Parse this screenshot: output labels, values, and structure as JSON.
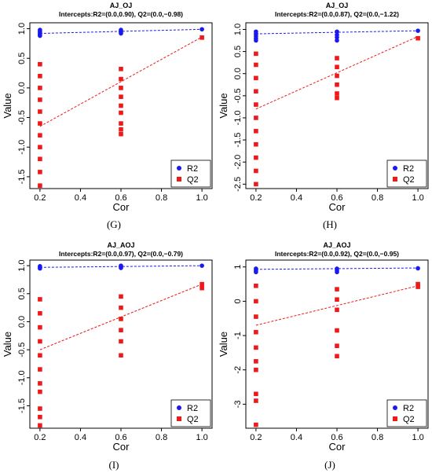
{
  "captions": [
    "(G)",
    "(H)",
    "(I)",
    "(J)"
  ],
  "chart_data": [
    {
      "type": "scatter",
      "title": "AJ_OJ",
      "subtitle": "Intercepts:R2=(0.0,0.90), Q2=(0.0,−0.98)",
      "xlabel": "Cor",
      "ylabel": "Value",
      "xlim": [
        0.15,
        1.05
      ],
      "ylim": [
        -1.7,
        1.1
      ],
      "xticks": [
        "0.2",
        "0.4",
        "0.6",
        "0.8",
        "1.0"
      ],
      "yticks": [
        "1.0",
        "0.5",
        "0.0",
        "-0.5",
        "-1.0",
        "-1.5"
      ],
      "legend_position": "bottom-right",
      "legend": [
        "R2",
        "Q2"
      ],
      "colors": {
        "R2": "#1a1aee",
        "Q2": "#ee1a1a"
      },
      "series": [
        {
          "name": "R2",
          "points": [
            [
              0.2,
              0.88
            ],
            [
              0.2,
              0.9
            ],
            [
              0.2,
              0.92
            ],
            [
              0.2,
              0.94
            ],
            [
              0.2,
              0.96
            ],
            [
              0.2,
              0.98
            ],
            [
              0.6,
              0.92
            ],
            [
              0.6,
              0.94
            ],
            [
              0.6,
              0.96
            ],
            [
              0.6,
              0.98
            ],
            [
              1.0,
              0.99
            ]
          ],
          "fit": [
            [
              0.2,
              0.92
            ],
            [
              1.0,
              0.99
            ]
          ]
        },
        {
          "name": "Q2",
          "points": [
            [
              0.2,
              0.4
            ],
            [
              0.2,
              0.2
            ],
            [
              0.2,
              0.0
            ],
            [
              0.2,
              -0.2
            ],
            [
              0.2,
              -0.4
            ],
            [
              0.2,
              -0.6
            ],
            [
              0.2,
              -0.8
            ],
            [
              0.2,
              -1.0
            ],
            [
              0.2,
              -1.2
            ],
            [
              0.2,
              -1.42
            ],
            [
              0.2,
              -1.65
            ],
            [
              0.6,
              0.32
            ],
            [
              0.6,
              0.15
            ],
            [
              0.6,
              0.0
            ],
            [
              0.6,
              -0.15
            ],
            [
              0.6,
              -0.3
            ],
            [
              0.6,
              -0.42
            ],
            [
              0.6,
              -0.6
            ],
            [
              0.6,
              -0.7
            ],
            [
              0.6,
              -0.78
            ],
            [
              1.0,
              0.85
            ]
          ],
          "fit": [
            [
              0.2,
              -0.65
            ],
            [
              1.0,
              0.86
            ]
          ]
        }
      ]
    },
    {
      "type": "scatter",
      "title": "AJ_OJ",
      "subtitle": "Intercepts:R2=(0.0,0.87), Q2=(0.0,−1.22)",
      "xlabel": "Cor",
      "ylabel": "Value",
      "xlim": [
        0.15,
        1.05
      ],
      "ylim": [
        -2.6,
        1.15
      ],
      "xticks": [
        "0.2",
        "0.4",
        "0.6",
        "0.8",
        "1.0"
      ],
      "yticks": [
        "1.0",
        "0.5",
        "0.0",
        "-0.5",
        "-1.0",
        "-1.5",
        "-2.0",
        "-2.5"
      ],
      "legend_position": "bottom-right",
      "legend": [
        "R2",
        "Q2"
      ],
      "colors": {
        "R2": "#1a1aee",
        "Q2": "#ee1a1a"
      },
      "series": [
        {
          "name": "R2",
          "points": [
            [
              0.2,
              0.75
            ],
            [
              0.2,
              0.8
            ],
            [
              0.2,
              0.85
            ],
            [
              0.2,
              0.9
            ],
            [
              0.2,
              0.95
            ],
            [
              0.6,
              0.75
            ],
            [
              0.6,
              0.82
            ],
            [
              0.6,
              0.88
            ],
            [
              0.6,
              0.95
            ],
            [
              1.0,
              0.97
            ]
          ],
          "fit": [
            [
              0.2,
              0.9
            ],
            [
              1.0,
              0.97
            ]
          ]
        },
        {
          "name": "Q2",
          "points": [
            [
              0.2,
              0.45
            ],
            [
              0.2,
              0.2
            ],
            [
              0.2,
              -0.1
            ],
            [
              0.2,
              -0.4
            ],
            [
              0.2,
              -0.7
            ],
            [
              0.2,
              -1.0
            ],
            [
              0.2,
              -1.3
            ],
            [
              0.2,
              -1.6
            ],
            [
              0.2,
              -1.9
            ],
            [
              0.2,
              -2.2
            ],
            [
              0.2,
              -2.5
            ],
            [
              0.6,
              0.35
            ],
            [
              0.6,
              0.15
            ],
            [
              0.6,
              -0.05
            ],
            [
              0.6,
              -0.25
            ],
            [
              0.6,
              -0.45
            ],
            [
              0.6,
              -0.55
            ],
            [
              1.0,
              0.8
            ]
          ],
          "fit": [
            [
              0.2,
              -0.8
            ],
            [
              1.0,
              0.84
            ]
          ]
        }
      ]
    },
    {
      "type": "scatter",
      "title": "AJ_AOJ",
      "subtitle": "Intercepts:R2=(0.0,0.97), Q2=(0.0,−0.79)",
      "xlabel": "Cor",
      "ylabel": "Value",
      "xlim": [
        0.15,
        1.05
      ],
      "ylim": [
        -1.9,
        1.1
      ],
      "xticks": [
        "0.2",
        "0.4",
        "0.6",
        "0.8",
        "1.0"
      ],
      "yticks": [
        "1.0",
        "0.5",
        "0.0",
        "-0.5",
        "-1.0",
        "-1.5"
      ],
      "legend_position": "bottom-right",
      "legend": [
        "R2",
        "Q2"
      ],
      "colors": {
        "R2": "#1a1aee",
        "Q2": "#ee1a1a"
      },
      "series": [
        {
          "name": "R2",
          "points": [
            [
              0.2,
              0.95
            ],
            [
              0.2,
              0.97
            ],
            [
              0.2,
              0.99
            ],
            [
              0.6,
              0.96
            ],
            [
              0.6,
              0.98
            ],
            [
              0.6,
              1.0
            ],
            [
              1.0,
              1.0
            ]
          ],
          "fit": [
            [
              0.2,
              0.97
            ],
            [
              1.0,
              1.0
            ]
          ]
        },
        {
          "name": "Q2",
          "points": [
            [
              0.2,
              0.4
            ],
            [
              0.2,
              0.15
            ],
            [
              0.2,
              -0.1
            ],
            [
              0.2,
              -0.35
            ],
            [
              0.2,
              -0.6
            ],
            [
              0.2,
              -0.85
            ],
            [
              0.2,
              -1.1
            ],
            [
              0.2,
              -1.25
            ],
            [
              0.2,
              -1.55
            ],
            [
              0.2,
              -1.7
            ],
            [
              0.2,
              -1.85
            ],
            [
              0.6,
              0.45
            ],
            [
              0.6,
              0.25
            ],
            [
              0.6,
              0.05
            ],
            [
              0.6,
              -0.15
            ],
            [
              0.6,
              -0.35
            ],
            [
              0.6,
              -0.6
            ],
            [
              1.0,
              0.67
            ],
            [
              1.0,
              0.6
            ]
          ],
          "fit": [
            [
              0.2,
              -0.5
            ],
            [
              1.0,
              0.67
            ]
          ]
        }
      ]
    },
    {
      "type": "scatter",
      "title": "AJ_AOJ",
      "subtitle": "Intercepts:R2=(0.0,0.92), Q2=(0.0,−0.95)",
      "xlabel": "Cor",
      "ylabel": "Value",
      "xlim": [
        0.15,
        1.05
      ],
      "ylim": [
        -3.7,
        1.2
      ],
      "xticks": [
        "0.2",
        "0.4",
        "0.6",
        "0.8",
        "1.0"
      ],
      "yticks": [
        "1",
        "0",
        "-1",
        "-2",
        "-3"
      ],
      "legend_position": "bottom-right",
      "legend": [
        "R2",
        "Q2"
      ],
      "colors": {
        "R2": "#1a1aee",
        "Q2": "#ee1a1a"
      },
      "series": [
        {
          "name": "R2",
          "points": [
            [
              0.2,
              0.85
            ],
            [
              0.2,
              0.9
            ],
            [
              0.2,
              0.95
            ],
            [
              0.6,
              0.85
            ],
            [
              0.6,
              0.9
            ],
            [
              0.6,
              0.95
            ],
            [
              1.0,
              0.96
            ]
          ],
          "fit": [
            [
              0.2,
              0.93
            ],
            [
              1.0,
              0.97
            ]
          ]
        },
        {
          "name": "Q2",
          "points": [
            [
              0.2,
              0.45
            ],
            [
              0.2,
              0.0
            ],
            [
              0.2,
              -0.45
            ],
            [
              0.2,
              -0.9
            ],
            [
              0.2,
              -1.35
            ],
            [
              0.2,
              -1.75
            ],
            [
              0.2,
              -2.0
            ],
            [
              0.2,
              -2.7
            ],
            [
              0.2,
              -2.9
            ],
            [
              0.2,
              -3.6
            ],
            [
              0.6,
              0.35
            ],
            [
              0.6,
              0.05
            ],
            [
              0.6,
              -0.25
            ],
            [
              0.6,
              -0.85
            ],
            [
              0.6,
              -1.3
            ],
            [
              0.6,
              -1.6
            ],
            [
              1.0,
              0.5
            ],
            [
              1.0,
              0.42
            ]
          ],
          "fit": [
            [
              0.2,
              -0.7
            ],
            [
              1.0,
              0.45
            ]
          ]
        }
      ]
    }
  ]
}
